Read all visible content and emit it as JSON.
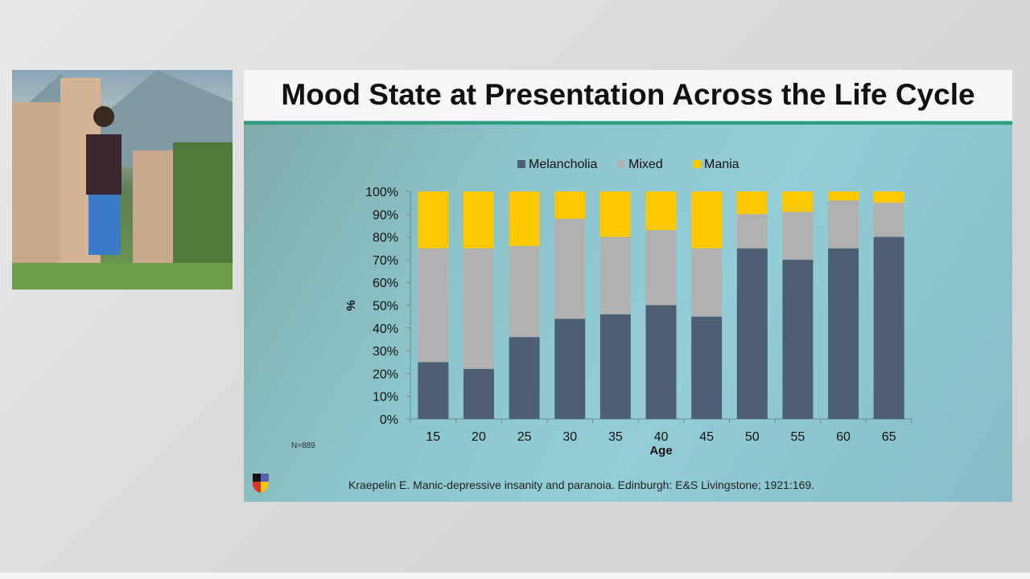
{
  "slide": {
    "title": "Mood State at Presentation Across the Life Cycle",
    "sample_size": "N=889",
    "citation": "Kraepelin E. Manic-depressive insanity and paranoia. Edinburgh: E&S Livingstone; 1921:169."
  },
  "chart_data": {
    "type": "bar",
    "stacked": true,
    "percent_stacked": true,
    "xlabel": "Age",
    "ylabel": "%",
    "ylim": [
      0,
      100
    ],
    "yticks": [
      "0%",
      "10%",
      "20%",
      "30%",
      "40%",
      "50%",
      "60%",
      "70%",
      "80%",
      "90%",
      "100%"
    ],
    "grid": false,
    "legend_position": "top",
    "categories": [
      "15",
      "20",
      "25",
      "30",
      "35",
      "40",
      "45",
      "50",
      "55",
      "60",
      "65"
    ],
    "series": [
      {
        "name": "Melancholia",
        "color": "#4e5f74",
        "values": [
          25,
          22,
          36,
          44,
          46,
          50,
          45,
          75,
          70,
          75,
          80
        ]
      },
      {
        "name": "Mixed",
        "color": "#b1b1b1",
        "values": [
          50,
          53,
          40,
          44,
          34,
          33,
          30,
          15,
          21,
          21,
          15
        ]
      },
      {
        "name": "Mania",
        "color": "#fcc800",
        "values": [
          25,
          25,
          24,
          12,
          20,
          17,
          25,
          10,
          9,
          4,
          5
        ]
      }
    ]
  }
}
